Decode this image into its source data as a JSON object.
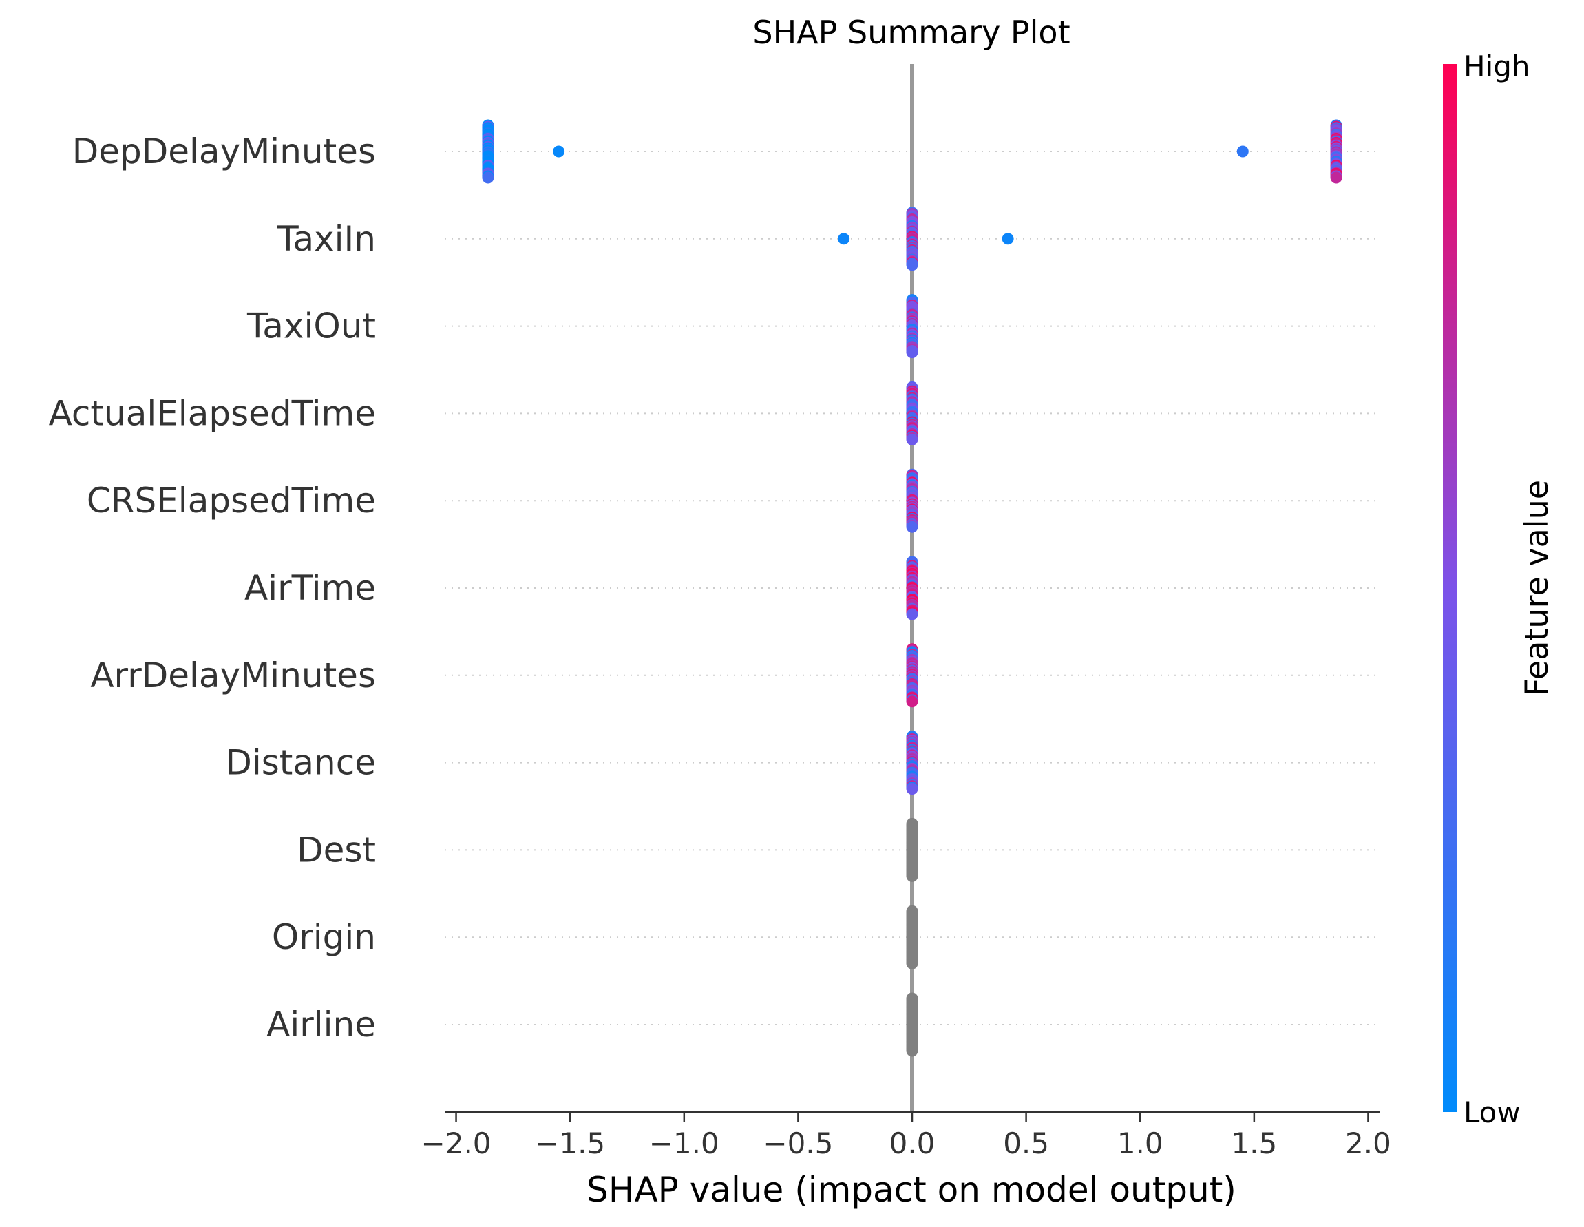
{
  "chart_data": {
    "type": "scatter",
    "title": "SHAP Summary Plot",
    "xlabel": "SHAP value (impact on model output)",
    "xlim": [
      -2.05,
      2.05
    ],
    "xticks": [
      -2.0,
      -1.5,
      -1.0,
      -0.5,
      0.0,
      0.5,
      1.0,
      1.5,
      2.0
    ],
    "xtick_labels": [
      "−2.0",
      "−1.5",
      "−1.0",
      "−0.5",
      "0.0",
      "0.5",
      "1.0",
      "1.5",
      "2.0"
    ],
    "colorbar": {
      "label": "Feature value",
      "high_label": "High",
      "low_label": "Low",
      "low_color": "#008bfb",
      "mid_color": "#7c52e9",
      "high_color": "#ff0052"
    },
    "no_value_color": "#808080",
    "features": [
      {
        "name": "DepDelayMinutes",
        "points": [
          {
            "shap": -1.86,
            "value": 0.05,
            "count": 40,
            "spread": 1.0
          },
          {
            "shap": -1.55,
            "value": 0.03,
            "count": 1,
            "spread": 0.0
          },
          {
            "shap": 1.45,
            "value": 0.18,
            "count": 1,
            "spread": 0.0
          },
          {
            "shap": 1.86,
            "value": 0.55,
            "count": 40,
            "spread": 1.0
          }
        ]
      },
      {
        "name": "TaxiIn",
        "points": [
          {
            "shap": -0.3,
            "value": 0.05,
            "count": 1,
            "spread": 0.0
          },
          {
            "shap": 0.42,
            "value": 0.05,
            "count": 1,
            "spread": 0.0
          },
          {
            "shap": 0.0,
            "value": 0.5,
            "count": 40,
            "spread": 1.0
          }
        ]
      },
      {
        "name": "TaxiOut",
        "points": [
          {
            "shap": 0.0,
            "value": 0.45,
            "count": 40,
            "spread": 1.0
          }
        ]
      },
      {
        "name": "ActualElapsedTime",
        "points": [
          {
            "shap": 0.0,
            "value": 0.55,
            "count": 40,
            "spread": 1.0
          }
        ]
      },
      {
        "name": "CRSElapsedTime",
        "points": [
          {
            "shap": 0.0,
            "value": 0.55,
            "count": 40,
            "spread": 1.0
          }
        ]
      },
      {
        "name": "AirTime",
        "points": [
          {
            "shap": 0.0,
            "value": 0.6,
            "count": 40,
            "spread": 1.0
          }
        ]
      },
      {
        "name": "ArrDelayMinutes",
        "points": [
          {
            "shap": 0.0,
            "value": 0.5,
            "count": 40,
            "spread": 1.0
          }
        ]
      },
      {
        "name": "Distance",
        "points": [
          {
            "shap": 0.0,
            "value": 0.45,
            "count": 40,
            "spread": 1.0
          }
        ]
      },
      {
        "name": "Dest",
        "points": [
          {
            "shap": 0.0,
            "value": null,
            "count": 40,
            "spread": 1.0
          }
        ]
      },
      {
        "name": "Origin",
        "points": [
          {
            "shap": 0.0,
            "value": null,
            "count": 40,
            "spread": 1.0
          }
        ]
      },
      {
        "name": "Airline",
        "points": [
          {
            "shap": 0.0,
            "value": null,
            "count": 40,
            "spread": 1.0
          }
        ]
      }
    ]
  }
}
